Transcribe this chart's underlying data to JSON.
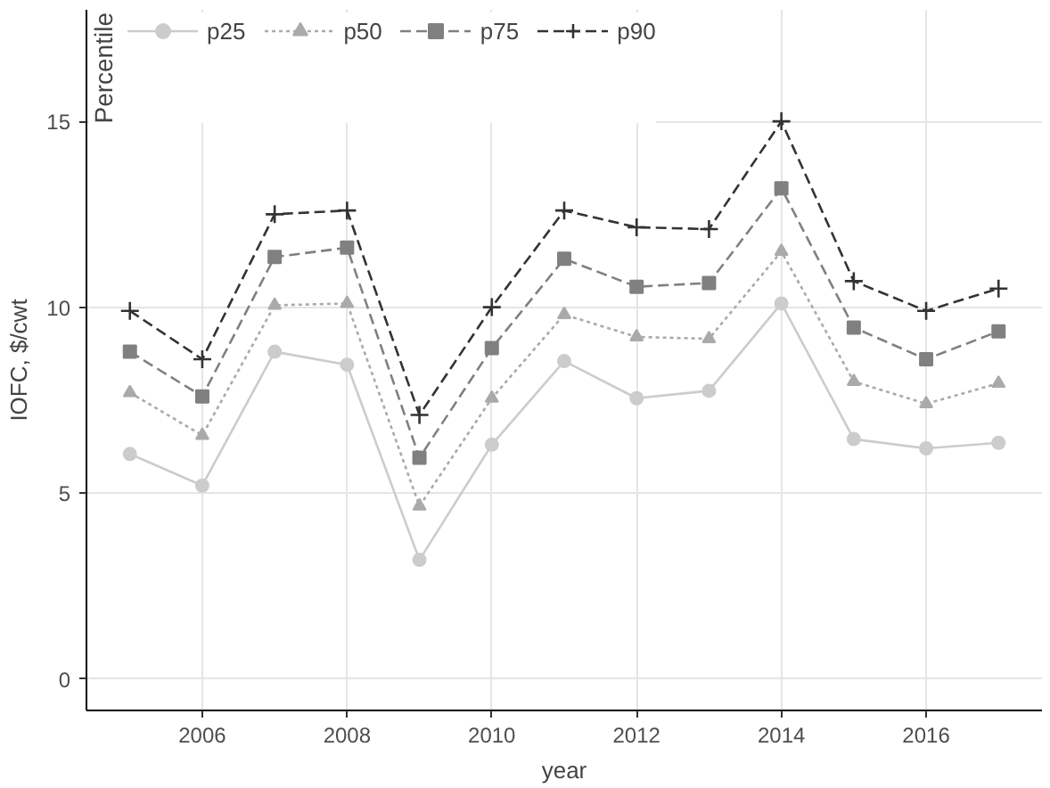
{
  "chart_data": {
    "type": "line",
    "xlabel": "year",
    "ylabel": "IOFC, $/cwt",
    "legend_title": "Percentile",
    "x": [
      2005,
      2006,
      2007,
      2008,
      2009,
      2010,
      2011,
      2012,
      2013,
      2014,
      2015,
      2016,
      2017
    ],
    "series": [
      {
        "name": "p25",
        "color": "#cccccc",
        "marker": "circle",
        "line_style": "solid",
        "values": [
          6.05,
          5.2,
          8.8,
          8.45,
          3.2,
          6.3,
          8.55,
          7.55,
          7.75,
          10.1,
          6.45,
          6.2,
          6.35
        ]
      },
      {
        "name": "p50",
        "color": "#aaaaaa",
        "marker": "triangle",
        "line_style": "dotted",
        "values": [
          7.7,
          6.55,
          10.05,
          10.1,
          4.65,
          7.55,
          9.8,
          9.2,
          9.15,
          11.5,
          8.0,
          7.4,
          7.95
        ]
      },
      {
        "name": "p75",
        "color": "#808080",
        "marker": "square",
        "line_style": "dashed",
        "values": [
          8.8,
          7.6,
          11.35,
          11.6,
          5.95,
          8.9,
          11.3,
          10.55,
          10.65,
          13.2,
          9.45,
          8.6,
          9.35
        ]
      },
      {
        "name": "p90",
        "color": "#333333",
        "marker": "cross",
        "line_style": "dashed",
        "values": [
          9.9,
          8.6,
          12.5,
          12.6,
          7.1,
          10.0,
          12.6,
          12.15,
          12.1,
          15.0,
          10.7,
          9.9,
          10.5
        ]
      }
    ],
    "xlim": [
      2004.4,
      2017.6
    ],
    "ylim": [
      -0.85,
      18
    ],
    "xticks": [
      2006,
      2008,
      2010,
      2012,
      2014,
      2016
    ],
    "yticks": [
      0,
      5,
      10,
      15
    ],
    "grid": true,
    "legend": "top left"
  }
}
